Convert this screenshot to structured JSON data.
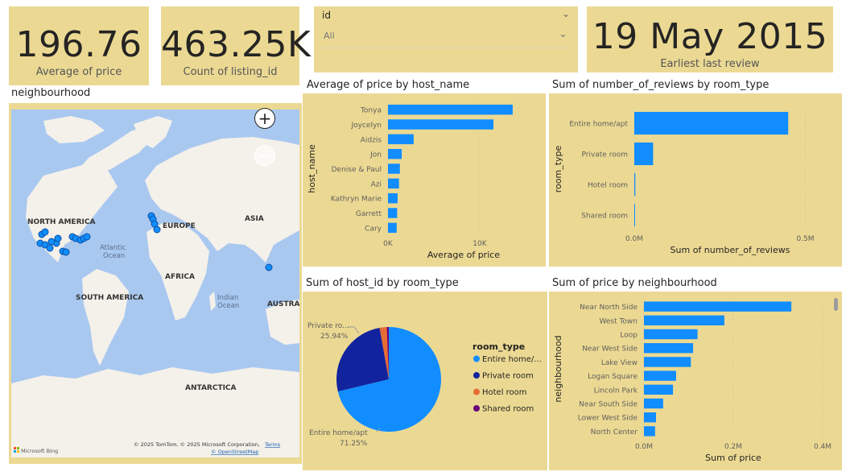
{
  "kpis": {
    "avg_price": {
      "value": "196.76",
      "label": "Average of price"
    },
    "count_listing": {
      "value": "463.25K",
      "label": "Count of listing_id"
    },
    "earliest_review": {
      "value": "19 May 2015",
      "label": "Earliest last  review"
    }
  },
  "slicer": {
    "field": "id",
    "selected": "All"
  },
  "map": {
    "title": "neighbourhood",
    "labels": {
      "north_america": "NORTH AMERICA",
      "europe": "EUROPE",
      "asia": "ASIA",
      "africa": "AFRICA",
      "south_america": "SOUTH AMERICA",
      "atlantic": "Atlantic",
      "ocean1": "Ocean",
      "indian": "Indian",
      "ocean2": "Ocean",
      "australia": "AUSTRAL",
      "antarctica": "ANTARCTICA"
    },
    "attribution": "© 2025 TomTom, © 2025 Microsoft Corporation,",
    "terms": "Terms",
    "osm": "© OpenStreetMap",
    "bing": "Microsoft Bing"
  },
  "chart_data": [
    {
      "id": "price_by_host",
      "type": "bar",
      "orientation": "horizontal",
      "title": "Average of price by host_name",
      "xlabel": "Average of price",
      "ylabel": "host_name",
      "categories": [
        "Tonya",
        "Joycelyn",
        "Aidzis",
        "Jon",
        "Denise & Paul",
        "Azi",
        "Kathryn Marie",
        "Garrett",
        "Cary"
      ],
      "values": [
        13600,
        11500,
        2800,
        1500,
        1300,
        1200,
        1050,
        1000,
        950
      ],
      "ticks": [
        {
          "value": 0,
          "label": "0K"
        },
        {
          "value": 10000,
          "label": "10K"
        }
      ],
      "xlim": [
        0,
        16500
      ],
      "color": "#118dff"
    },
    {
      "id": "reviews_by_room",
      "type": "bar",
      "orientation": "horizontal",
      "title": "Sum of number_of_reviews by room_type",
      "xlabel": "Sum of number_of_reviews",
      "ylabel": "room_type",
      "categories": [
        "Entire home/apt",
        "Private room",
        "Hotel room",
        "Shared room"
      ],
      "values": [
        450000,
        55000,
        3000,
        2000
      ],
      "ticks": [
        {
          "value": 0,
          "label": "0.0M"
        },
        {
          "value": 500000,
          "label": "0.5M"
        }
      ],
      "xlim": [
        0,
        560000
      ],
      "color": "#118dff"
    },
    {
      "id": "host_by_room",
      "type": "pie",
      "title": "Sum of host_id by room_type",
      "legend_title": "room_type",
      "slices": [
        {
          "name": "Entire home/...",
          "value": 71.25,
          "color": "#118dff"
        },
        {
          "name": "Private room",
          "value": 25.94,
          "color": "#12239e"
        },
        {
          "name": "Hotel room",
          "value": 2.2,
          "color": "#e66c37"
        },
        {
          "name": "Shared room",
          "value": 0.61,
          "color": "#6b007b"
        }
      ],
      "data_labels": [
        {
          "name": "Private ro...",
          "pct": "25.94%"
        },
        {
          "name": "Entire home/apt",
          "pct": "71.25%"
        }
      ]
    },
    {
      "id": "price_by_neighbourhood",
      "type": "bar",
      "orientation": "horizontal",
      "title": "Sum of price by neighbourhood",
      "xlabel": "Sum of price",
      "ylabel": "neighbourhood",
      "categories": [
        "Near North Side",
        "West Town",
        "Loop",
        "Near West Side",
        "Lake View",
        "Logan Square",
        "Lincoln Park",
        "Near South Side",
        "Lower West Side",
        "North Center"
      ],
      "values": [
        330000,
        180000,
        120000,
        110000,
        105000,
        72000,
        65000,
        43000,
        27000,
        25000
      ],
      "ticks": [
        {
          "value": 0,
          "label": "0.0M"
        },
        {
          "value": 200000,
          "label": "0.2M"
        },
        {
          "value": 400000,
          "label": "0.4M"
        }
      ],
      "xlim": [
        0,
        400000
      ],
      "color": "#118dff"
    }
  ]
}
